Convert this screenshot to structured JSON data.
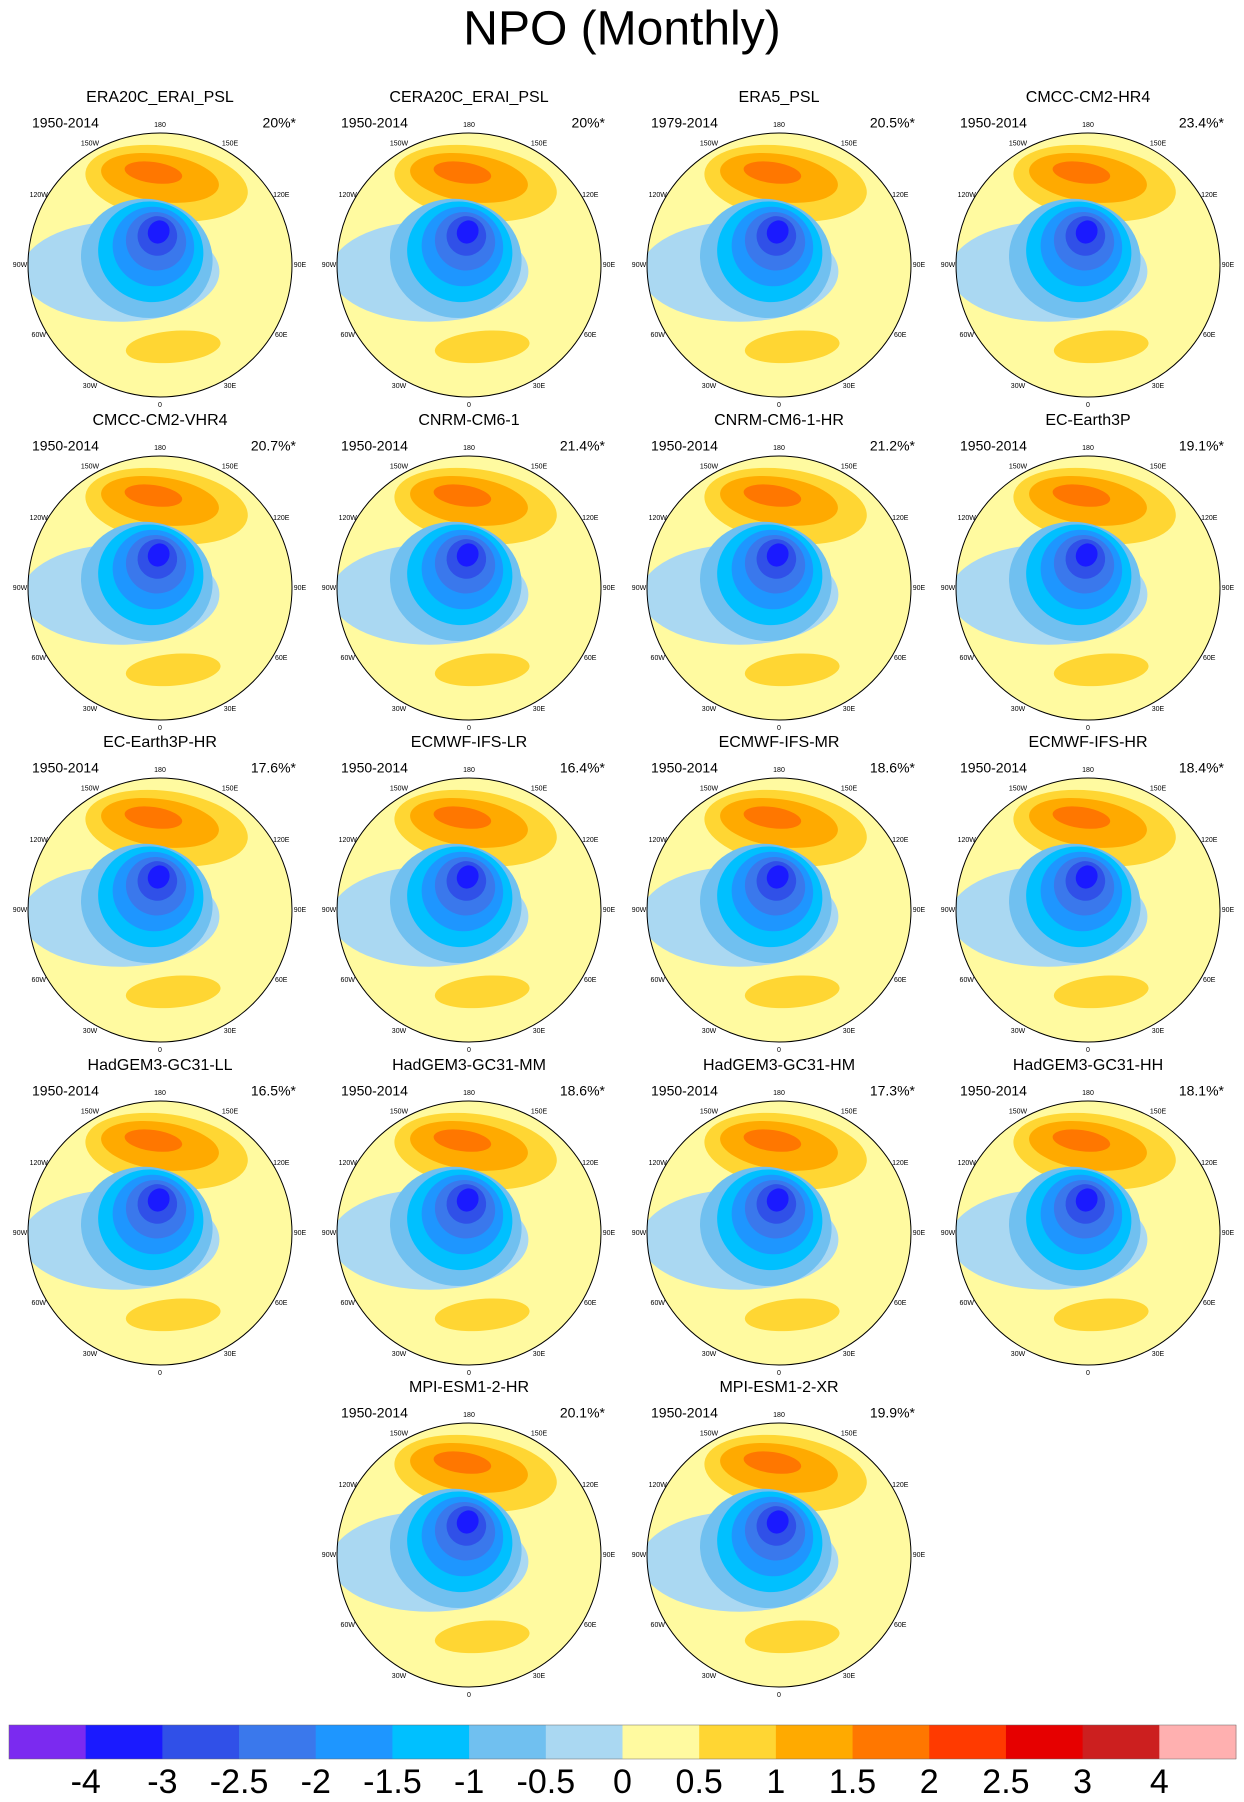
{
  "chart_data": {
    "type": "polar_map_panels",
    "title": "NPO (Monthly)",
    "longitude_labels": [
      "180",
      "150E",
      "120E",
      "90E",
      "60E",
      "30E",
      "0",
      "30W",
      "60W",
      "90W",
      "120W",
      "150W"
    ],
    "panels": [
      {
        "name": "ERA20C_ERAI_PSL",
        "period": "1950-2014",
        "variance": "20%*"
      },
      {
        "name": "CERA20C_ERAI_PSL",
        "period": "1950-2014",
        "variance": "20%*"
      },
      {
        "name": "ERA5_PSL",
        "period": "1979-2014",
        "variance": "20.5%*"
      },
      {
        "name": "CMCC-CM2-HR4",
        "period": "1950-2014",
        "variance": "23.4%*"
      },
      {
        "name": "CMCC-CM2-VHR4",
        "period": "1950-2014",
        "variance": "20.7%*"
      },
      {
        "name": "CNRM-CM6-1",
        "period": "1950-2014",
        "variance": "21.4%*"
      },
      {
        "name": "CNRM-CM6-1-HR",
        "period": "1950-2014",
        "variance": "21.2%*"
      },
      {
        "name": "EC-Earth3P",
        "period": "1950-2014",
        "variance": "19.1%*"
      },
      {
        "name": "EC-Earth3P-HR",
        "period": "1950-2014",
        "variance": "17.6%*"
      },
      {
        "name": "ECMWF-IFS-LR",
        "period": "1950-2014",
        "variance": "16.4%*"
      },
      {
        "name": "ECMWF-IFS-MR",
        "period": "1950-2014",
        "variance": "18.6%*"
      },
      {
        "name": "ECMWF-IFS-HR",
        "period": "1950-2014",
        "variance": "18.4%*"
      },
      {
        "name": "HadGEM3-GC31-LL",
        "period": "1950-2014",
        "variance": "16.5%*"
      },
      {
        "name": "HadGEM3-GC31-MM",
        "period": "1950-2014",
        "variance": "18.6%*"
      },
      {
        "name": "HadGEM3-GC31-HM",
        "period": "1950-2014",
        "variance": "17.3%*"
      },
      {
        "name": "HadGEM3-GC31-HH",
        "period": "1950-2014",
        "variance": "18.1%*"
      },
      {
        "name": "MPI-ESM1-2-HR",
        "period": "1950-2014",
        "variance": "20.1%*"
      },
      {
        "name": "MPI-ESM1-2-XR",
        "period": "1950-2014",
        "variance": "19.9%*"
      }
    ],
    "colorbar": {
      "colors": [
        "#7b2af0",
        "#1a1aff",
        "#3050e8",
        "#3a78ec",
        "#1e96ff",
        "#00c0ff",
        "#70c0f0",
        "#aad8f2",
        "#fffaa0",
        "#ffd633",
        "#ffaa00",
        "#ff7700",
        "#ff3a00",
        "#e60000",
        "#cc1f1f",
        "#ffb0b0"
      ],
      "levels": [
        -4,
        -3,
        -2.5,
        -2,
        -1.5,
        -1,
        -0.5,
        0,
        0.5,
        1,
        1.5,
        2,
        2.5,
        3,
        4
      ]
    }
  }
}
